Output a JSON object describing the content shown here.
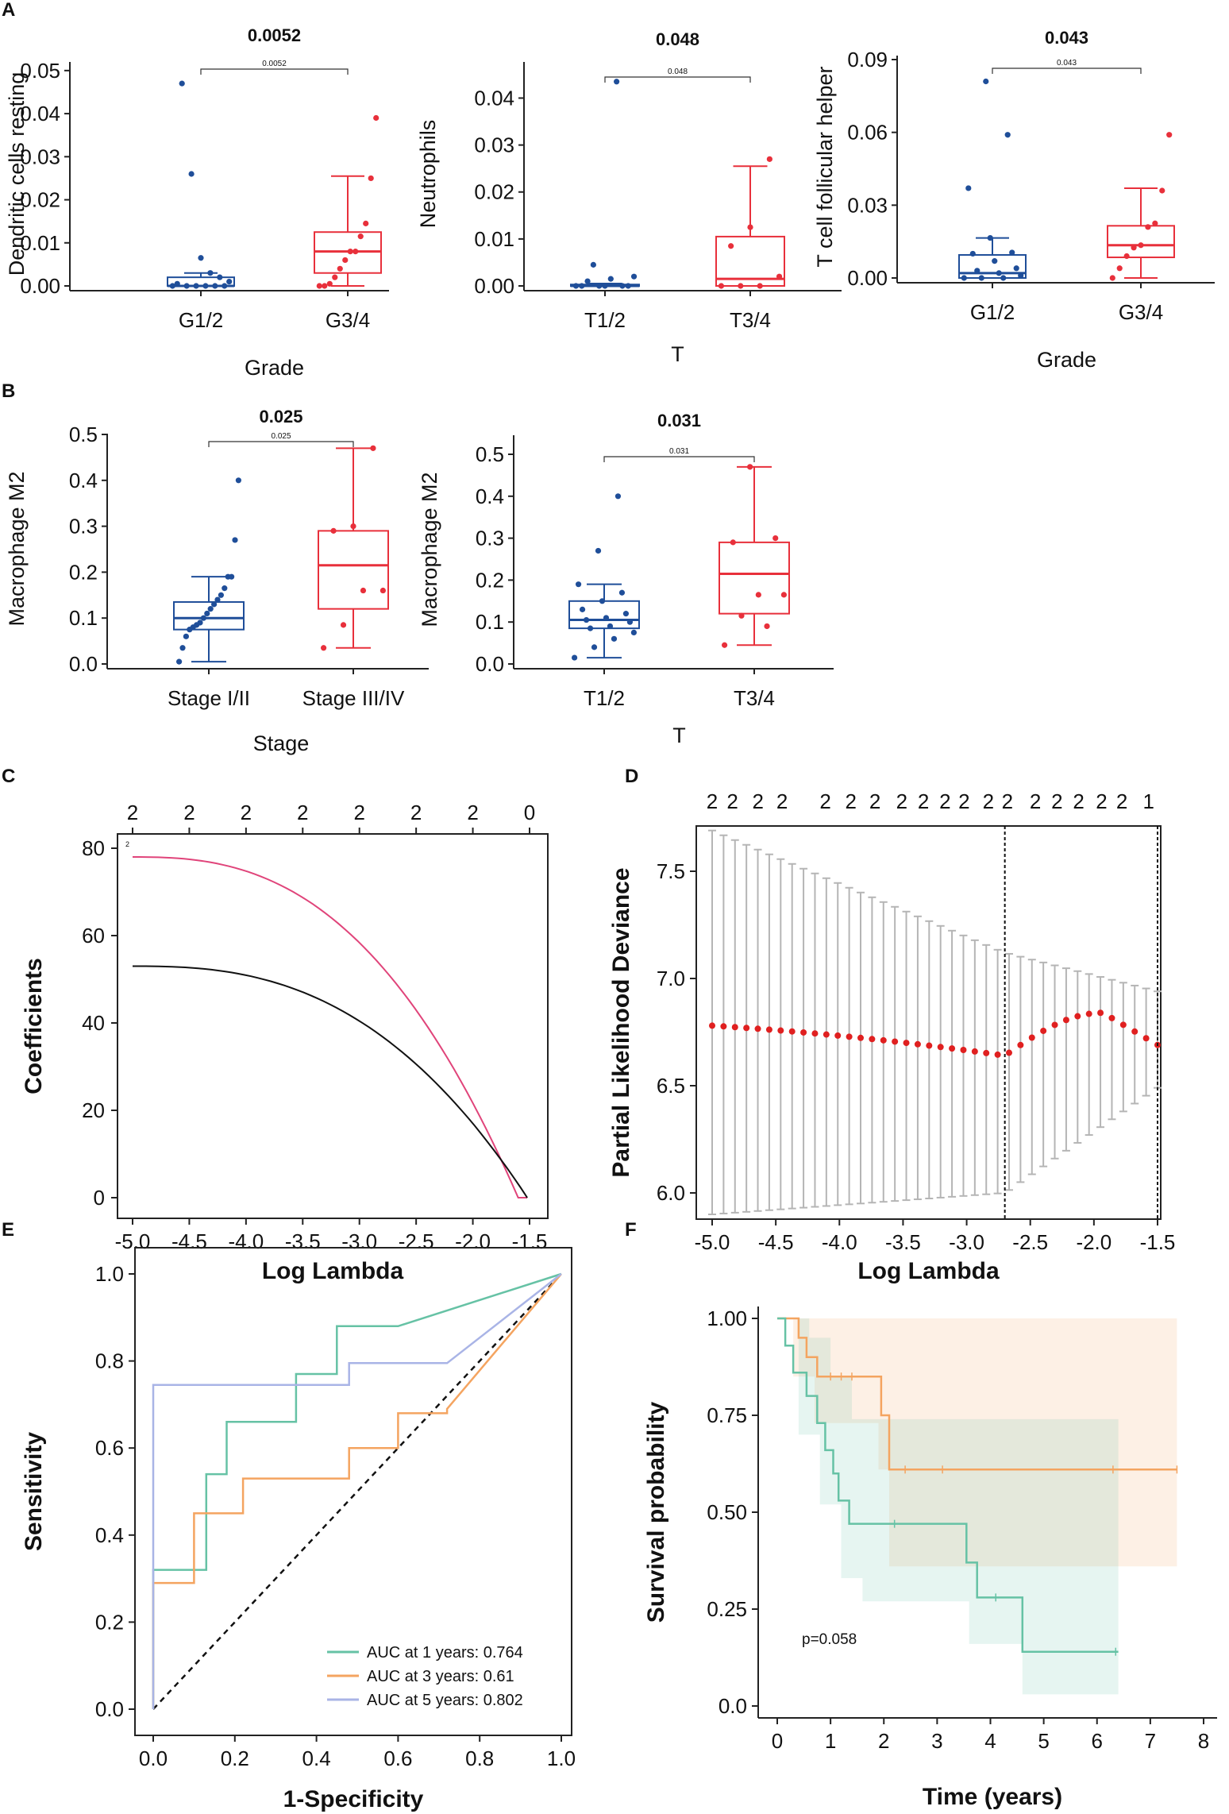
{
  "panel_labels": {
    "A": "A",
    "B": "B",
    "C": "C",
    "D": "D",
    "E": "E",
    "F": "F"
  },
  "colors": {
    "blue": "#1f4e99",
    "red": "#e8303b",
    "lasso_red": "#e0447a",
    "lasso_black": "#111111",
    "green": "#66c2a5",
    "orange": "#f4a460",
    "lavender": "#a9b4e6",
    "gray": "#b5b5b5",
    "dot_red": "#e02020"
  },
  "chart_data": [
    {
      "id": "A1",
      "type": "box",
      "title": "0.0052",
      "ylabel": "Dendritic cells resting",
      "xlabel": "Grade",
      "categories": [
        "G1/2",
        "G3/4"
      ],
      "ylim": [
        0,
        0.052
      ],
      "yticks": [
        0,
        0.01,
        0.02,
        0.03,
        0.04,
        0.05
      ],
      "ytick_labels": [
        "0.00",
        "0.01",
        "0.02",
        "0.03",
        "0.04",
        "0.05"
      ],
      "boxes": [
        {
          "min": 0,
          "q1": 0,
          "median": 0,
          "q3": 0.002,
          "max": 0.003
        },
        {
          "min": 0,
          "q1": 0.003,
          "median": 0.008,
          "q3": 0.0125,
          "max": 0.0255
        }
      ],
      "points": [
        [
          0,
          0,
          0,
          0,
          0,
          0,
          0.0005,
          0.001,
          0.002,
          0.003,
          0.0065,
          0.026,
          0.047
        ],
        [
          0,
          0,
          0.0005,
          0.002,
          0.004,
          0.006,
          0.008,
          0.008,
          0.0115,
          0.0145,
          0.025,
          0.039
        ]
      ],
      "bracket_label": "0.0052"
    },
    {
      "id": "A2",
      "type": "box",
      "title": "0.048",
      "ylabel": "Neutrophils",
      "xlabel": "T",
      "categories": [
        "T1/2",
        "T3/4"
      ],
      "ylim": [
        0,
        0.046
      ],
      "yticks": [
        0,
        0.01,
        0.02,
        0.03,
        0.04
      ],
      "ytick_labels": [
        "0.00",
        "0.01",
        "0.02",
        "0.03",
        "0.04"
      ],
      "boxes": [
        {
          "min": 0,
          "q1": 0,
          "median": 0,
          "q3": 0.0003,
          "max": 0.0005
        },
        {
          "min": 0,
          "q1": 0,
          "median": 0.0015,
          "q3": 0.0105,
          "max": 0.0255
        }
      ],
      "points": [
        [
          0,
          0,
          0,
          0,
          0,
          0,
          0.001,
          0.0015,
          0.002,
          0.0045,
          0.0435
        ],
        [
          0,
          0,
          0,
          0.002,
          0.0085,
          0.0125,
          0.027
        ]
      ],
      "bracket_label": "0.048"
    },
    {
      "id": "A3",
      "type": "box",
      "title": "0.043",
      "ylabel": "T cell follicular helper",
      "xlabel": "Grade",
      "categories": [
        "G1/2",
        "G3/4"
      ],
      "ylim": [
        0,
        0.09
      ],
      "yticks": [
        0,
        0.03,
        0.06,
        0.09
      ],
      "ytick_labels": [
        "0.00",
        "0.03",
        "0.06",
        "0.09"
      ],
      "boxes": [
        {
          "min": 0,
          "q1": 0,
          "median": 0.002,
          "q3": 0.0095,
          "max": 0.0165
        },
        {
          "min": 0,
          "q1": 0.0085,
          "median": 0.0135,
          "q3": 0.0215,
          "max": 0.037
        }
      ],
      "points": [
        [
          0,
          0,
          0,
          0.001,
          0.002,
          0.003,
          0.004,
          0.007,
          0.01,
          0.0105,
          0.0165,
          0.037,
          0.059,
          0.081
        ],
        [
          0,
          0.004,
          0.009,
          0.0125,
          0.0135,
          0.021,
          0.0225,
          0.036,
          0.059
        ]
      ],
      "bracket_label": "0.043"
    },
    {
      "id": "B1",
      "type": "box",
      "title": "0.025",
      "ylabel": "Macrophage M2",
      "xlabel": "Stage",
      "categories": [
        "Stage I/II",
        "Stage III/IV"
      ],
      "ylim": [
        0,
        0.5
      ],
      "yticks": [
        0,
        0.1,
        0.2,
        0.3,
        0.4,
        0.5
      ],
      "ytick_labels": [
        "0.0",
        "0.1",
        "0.2",
        "0.3",
        "0.4",
        "0.5"
      ],
      "boxes": [
        {
          "min": 0.005,
          "q1": 0.075,
          "median": 0.1,
          "q3": 0.135,
          "max": 0.19
        },
        {
          "min": 0.035,
          "q1": 0.12,
          "median": 0.215,
          "q3": 0.29,
          "max": 0.47
        }
      ],
      "points": [
        [
          0.005,
          0.035,
          0.06,
          0.075,
          0.08,
          0.085,
          0.09,
          0.1,
          0.11,
          0.12,
          0.13,
          0.14,
          0.15,
          0.165,
          0.19,
          0.19,
          0.27,
          0.4
        ],
        [
          0.035,
          0.085,
          0.16,
          0.16,
          0.29,
          0.3,
          0.47
        ]
      ],
      "bracket_label": "0.025"
    },
    {
      "id": "B2",
      "type": "box",
      "title": "0.031",
      "ylabel": "Macrophage M2",
      "xlabel": "T",
      "categories": [
        "T1/2",
        "T3/4"
      ],
      "ylim": [
        0,
        0.5
      ],
      "yticks": [
        0,
        0.1,
        0.2,
        0.3,
        0.4,
        0.5
      ],
      "ytick_labels": [
        "0.0",
        "0.1",
        "0.2",
        "0.3",
        "0.4",
        "0.5"
      ],
      "boxes": [
        {
          "min": 0.015,
          "q1": 0.085,
          "median": 0.105,
          "q3": 0.15,
          "max": 0.19
        },
        {
          "min": 0.045,
          "q1": 0.12,
          "median": 0.215,
          "q3": 0.29,
          "max": 0.47
        }
      ],
      "points": [
        [
          0.015,
          0.04,
          0.06,
          0.075,
          0.085,
          0.09,
          0.1,
          0.105,
          0.11,
          0.12,
          0.13,
          0.15,
          0.17,
          0.19,
          0.27,
          0.4
        ],
        [
          0.045,
          0.09,
          0.115,
          0.165,
          0.165,
          0.29,
          0.3,
          0.47
        ]
      ],
      "bracket_label": "0.031"
    },
    {
      "id": "C",
      "type": "line",
      "xlabel": "Log Lambda",
      "ylabel": "Coefficients",
      "xlim": [
        -5.0,
        -1.5
      ],
      "ylim": [
        -2,
        82
      ],
      "xticks": [
        -5.0,
        -4.5,
        -4.0,
        -3.5,
        -3.0,
        -2.5,
        -2.0,
        -1.5
      ],
      "xtick_labels": [
        "-5.0",
        "-4.5",
        "-4.0",
        "-3.5",
        "-3.0",
        "-2.5",
        "-2.0",
        "-1.5"
      ],
      "yticks": [
        0,
        20,
        40,
        60,
        80
      ],
      "ytick_labels": [
        "0",
        "20",
        "40",
        "60",
        "80"
      ],
      "top_ticks": [
        -5.0,
        -4.5,
        -4.0,
        -3.5,
        -3.0,
        -2.5,
        -2.0,
        -1.5
      ],
      "top_labels": [
        "2",
        "2",
        "2",
        "2",
        "2",
        "2",
        "2",
        "0"
      ],
      "series": [
        {
          "name": "red",
          "start": [
            -5.0,
            78
          ],
          "end": [
            -1.6,
            0
          ]
        },
        {
          "name": "black",
          "start": [
            -5.0,
            53
          ],
          "end": [
            -1.52,
            0
          ]
        }
      ],
      "line_label": "2"
    },
    {
      "id": "D",
      "type": "errorbar",
      "xlabel": "Log Lambda",
      "ylabel": "Partial Likelihood Deviance",
      "xlim": [
        -5.0,
        -1.5
      ],
      "ylim": [
        5.9,
        7.75
      ],
      "xticks": [
        -5.0,
        -4.5,
        -4.0,
        -3.5,
        -3.0,
        -2.5,
        -2.0,
        -1.5
      ],
      "xtick_labels": [
        "-5.0",
        "-4.5",
        "-4.0",
        "-3.5",
        "-3.0",
        "-2.5",
        "-2.0",
        "-1.5"
      ],
      "yticks": [
        6.0,
        6.5,
        7.0,
        7.5
      ],
      "ytick_labels": [
        "6.0",
        "6.5",
        "7.0",
        "7.5"
      ],
      "top_ticks": [
        -5.0,
        -4.84,
        -4.64,
        -4.45,
        -4.11,
        -3.91,
        -3.72,
        -3.51,
        -3.34,
        -3.17,
        -3.02,
        -2.83,
        -2.68,
        -2.46,
        -2.29,
        -2.12,
        -1.94,
        -1.78,
        -1.57
      ],
      "top_labels": [
        "2",
        "2",
        "2",
        "2",
        "2",
        "2",
        "2",
        "2",
        "2",
        "2",
        "2",
        "2",
        "2",
        "2",
        "2",
        "2",
        "2",
        "2",
        "1"
      ],
      "vlines": [
        -2.7,
        -1.5
      ],
      "points": {
        "n": 40,
        "x_start": -5.0,
        "x_end": -1.5,
        "mean_start": 6.78,
        "mean_min": 6.64,
        "min_x": -2.7,
        "peak_x": -1.93,
        "peak": 6.84,
        "mean_end": 6.69,
        "upper_start": 7.69,
        "upper_min": 7.12,
        "upper_end": 6.94,
        "lower_start": 5.9,
        "lower_min": 6.0,
        "lower_end": 6.49
      }
    },
    {
      "id": "E",
      "type": "roc",
      "xlabel": "1-Specificity",
      "ylabel": "Sensitivity",
      "xlim": [
        0,
        1
      ],
      "ylim": [
        0,
        1
      ],
      "xticks": [
        0,
        0.2,
        0.4,
        0.6,
        0.8,
        1.0
      ],
      "xtick_labels": [
        "0.0",
        "0.2",
        "0.4",
        "0.6",
        "0.8",
        "1.0"
      ],
      "yticks": [
        0,
        0.2,
        0.4,
        0.6,
        0.8,
        1.0
      ],
      "ytick_labels": [
        "0.0",
        "0.2",
        "0.4",
        "0.6",
        "0.8",
        "1.0"
      ],
      "series": [
        {
          "name": "AUC at 1 years: 0.764",
          "auc": 0.764,
          "points": [
            [
              0,
              0
            ],
            [
              0,
              0.32
            ],
            [
              0.13,
              0.32
            ],
            [
              0.13,
              0.54
            ],
            [
              0.18,
              0.54
            ],
            [
              0.18,
              0.66
            ],
            [
              0.35,
              0.66
            ],
            [
              0.35,
              0.77
            ],
            [
              0.45,
              0.77
            ],
            [
              0.45,
              0.88
            ],
            [
              0.6,
              0.88
            ],
            [
              1,
              1
            ]
          ]
        },
        {
          "name": "AUC at 3 years: 0.61",
          "auc": 0.61,
          "points": [
            [
              0,
              0
            ],
            [
              0,
              0.29
            ],
            [
              0.1,
              0.29
            ],
            [
              0.1,
              0.45
            ],
            [
              0.22,
              0.45
            ],
            [
              0.22,
              0.53
            ],
            [
              0.48,
              0.53
            ],
            [
              0.48,
              0.6
            ],
            [
              0.6,
              0.6
            ],
            [
              0.6,
              0.68
            ],
            [
              0.72,
              0.68
            ],
            [
              0.72,
              0.69
            ],
            [
              1,
              1
            ]
          ]
        },
        {
          "name": "AUC at 5 years: 0.802",
          "auc": 0.802,
          "points": [
            [
              0,
              0
            ],
            [
              0,
              0.745
            ],
            [
              0.48,
              0.745
            ],
            [
              0.48,
              0.795
            ],
            [
              0.72,
              0.795
            ],
            [
              1,
              1
            ]
          ]
        }
      ]
    },
    {
      "id": "F",
      "type": "survival",
      "xlabel": "Time (years)",
      "ylabel": "Survival probability",
      "xlim": [
        -0.3,
        8.2
      ],
      "ylim": [
        -0.05,
        1.05
      ],
      "xticks": [
        0,
        1,
        2,
        3,
        4,
        5,
        6,
        7,
        8
      ],
      "xtick_labels": [
        "0",
        "1",
        "2",
        "3",
        "4",
        "5",
        "6",
        "7",
        "8"
      ],
      "yticks": [
        0,
        0.25,
        0.5,
        0.75,
        1.0
      ],
      "ytick_labels": [
        "0.0",
        "0.25",
        "0.50",
        "0.75",
        "1.00"
      ],
      "pvalue_text": "p=0.058",
      "series": [
        {
          "name": "group1",
          "steps": [
            [
              0,
              1.0
            ],
            [
              0.4,
              0.95
            ],
            [
              0.55,
              0.9
            ],
            [
              0.75,
              0.85
            ],
            [
              1.0,
              0.85
            ],
            [
              1.2,
              0.85
            ],
            [
              1.4,
              0.85
            ],
            [
              1.95,
              0.75
            ],
            [
              2.1,
              0.61
            ],
            [
              7.5,
              0.61
            ]
          ],
          "ci_upper": [
            [
              0,
              1.0
            ],
            [
              7.5,
              1.0
            ]
          ],
          "ci_lower": [
            [
              0,
              1.0
            ],
            [
              0.3,
              0.85
            ],
            [
              0.7,
              0.73
            ],
            [
              1.9,
              0.61
            ],
            [
              2.1,
              0.36
            ],
            [
              7.5,
              0.36
            ]
          ],
          "censor": [
            1.0,
            1.2,
            1.4,
            2.4,
            3.1,
            6.3,
            7.5
          ]
        },
        {
          "name": "group2",
          "steps": [
            [
              0,
              1.0
            ],
            [
              0.15,
              0.93
            ],
            [
              0.3,
              0.86
            ],
            [
              0.55,
              0.8
            ],
            [
              0.75,
              0.73
            ],
            [
              0.9,
              0.66
            ],
            [
              1.05,
              0.6
            ],
            [
              1.15,
              0.53
            ],
            [
              1.35,
              0.47
            ],
            [
              3.5,
              0.47
            ],
            [
              3.55,
              0.37
            ],
            [
              3.75,
              0.28
            ],
            [
              4.6,
              0.14
            ],
            [
              6.4,
              0.14
            ]
          ],
          "ci_upper": [
            [
              0,
              1.0
            ],
            [
              0.6,
              0.95
            ],
            [
              1.0,
              0.85
            ],
            [
              1.4,
              0.74
            ],
            [
              6.4,
              0.74
            ]
          ],
          "ci_lower": [
            [
              0,
              1.0
            ],
            [
              0.4,
              0.7
            ],
            [
              0.8,
              0.52
            ],
            [
              1.2,
              0.33
            ],
            [
              1.6,
              0.27
            ],
            [
              3.6,
              0.16
            ],
            [
              4.6,
              0.03
            ],
            [
              6.4,
              0.03
            ]
          ],
          "censor": [
            2.2,
            4.1,
            6.35
          ]
        }
      ]
    }
  ]
}
